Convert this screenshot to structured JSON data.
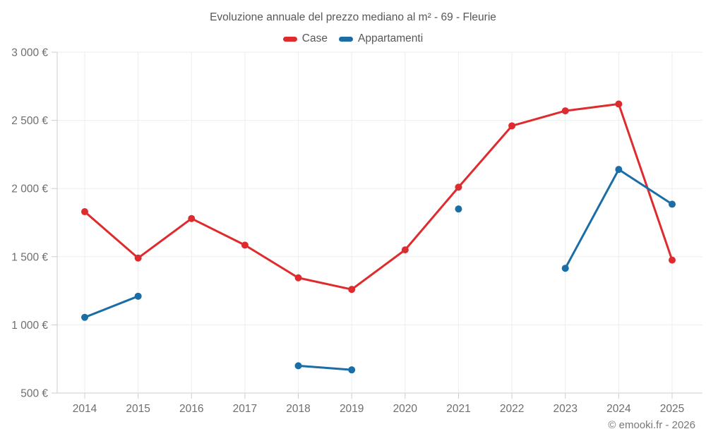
{
  "title": "Evoluzione annuale del prezzo mediano al m² - 69 - Fleurie",
  "legend": {
    "items": [
      {
        "label": "Case",
        "color": "#df2b2d"
      },
      {
        "label": "Appartamenti",
        "color": "#1b6da6"
      }
    ]
  },
  "footer": {
    "copyright": "© emooki.fr - 2026"
  },
  "colors": {
    "grid": "#ededed",
    "axis": "#cccccc",
    "tick_text": "#6d6e70"
  },
  "chart_data": {
    "type": "line",
    "title": "Evoluzione annuale del prezzo mediano al m² - 69 - Fleurie",
    "xlabel": "",
    "ylabel": "",
    "categories": [
      "2014",
      "2015",
      "2016",
      "2017",
      "2018",
      "2019",
      "2020",
      "2021",
      "2022",
      "2023",
      "2024",
      "2025"
    ],
    "series": [
      {
        "name": "Case",
        "color": "#df2b2d",
        "values": [
          1830,
          1490,
          1780,
          1585,
          1345,
          1260,
          1550,
          2010,
          2460,
          2570,
          2620,
          1475
        ]
      },
      {
        "name": "Appartamenti",
        "color": "#1b6da6",
        "values": [
          1055,
          1210,
          null,
          null,
          700,
          670,
          null,
          1850,
          null,
          1415,
          2140,
          1885
        ]
      }
    ],
    "ylim": [
      500,
      3000
    ],
    "ytick_step": 500,
    "ytick_labels": [
      "500 €",
      "1 000 €",
      "1 500 €",
      "2 000 €",
      "2 500 €",
      "3 000 €"
    ],
    "grid": true,
    "legend_position": "top",
    "unit": "€/m²"
  }
}
